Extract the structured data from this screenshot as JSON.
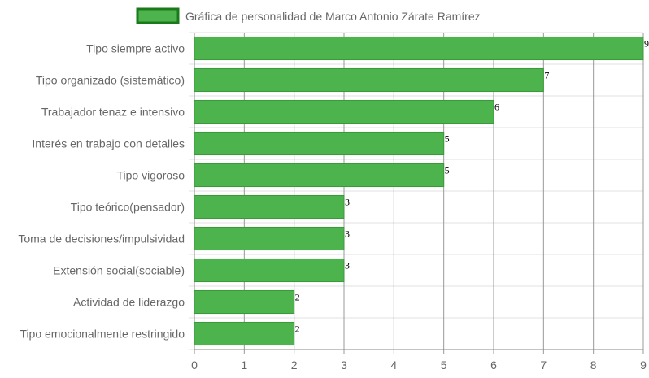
{
  "chart_data": {
    "type": "bar",
    "orientation": "horizontal",
    "legend": {
      "label": "Gráfica de personalidad de Marco Antonio Zárate Ramírez",
      "position": "top"
    },
    "categories": [
      "Tipo siempre activo",
      "Tipo organizado (sistemático)",
      "Trabajador tenaz e intensivo",
      "Interés en trabajo con detalles",
      "Tipo vigoroso",
      "Tipo teórico(pensador)",
      "Toma de decisiones/impulsividad",
      "Extensión social(sociable)",
      "Actividad de liderazgo",
      "Tipo emocionalmente restringido"
    ],
    "series": [
      {
        "name": "Gráfica de personalidad de Marco Antonio Zárate Ramírez",
        "values": [
          9,
          7,
          6,
          5,
          5,
          3,
          3,
          3,
          2,
          2
        ]
      }
    ],
    "xlim": [
      0,
      9
    ],
    "x_ticks": [
      "0",
      "1",
      "2",
      "3",
      "4",
      "5",
      "6",
      "7",
      "8",
      "9"
    ],
    "grid": true,
    "data_labels": true,
    "colors": {
      "bar_fill": "#4db34d",
      "bar_border": "#3a9a3a",
      "legend_border": "#1a7a1a",
      "grid": "#e0e0e0",
      "grid_vertical": "#999999"
    }
  }
}
